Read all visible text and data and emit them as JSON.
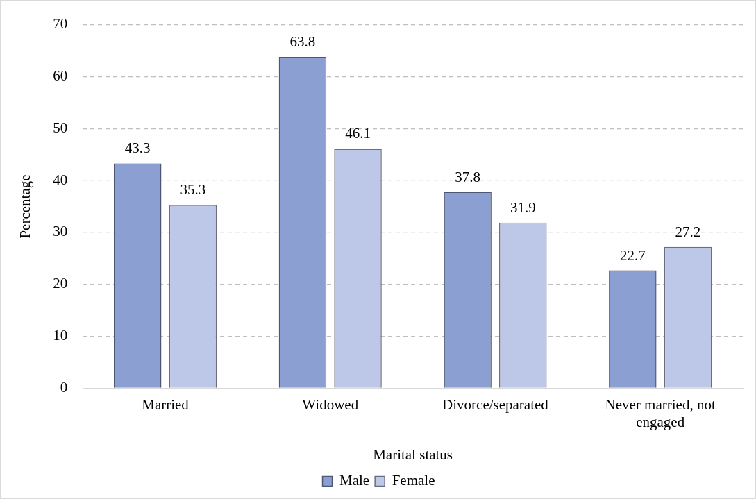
{
  "chart_data": {
    "type": "bar",
    "xlabel": "Marital status",
    "ylabel": "Percentage",
    "categories": [
      "Married",
      "Widowed",
      "Divorce/separated",
      "Never married, not engaged"
    ],
    "series": [
      {
        "name": "Male",
        "color": "#8c9fd2",
        "values": [
          43.3,
          63.8,
          37.8,
          22.7
        ]
      },
      {
        "name": "Female",
        "color": "#bdc7e7",
        "values": [
          35.3,
          46.1,
          31.9,
          27.2
        ]
      }
    ],
    "ylim": [
      0,
      70
    ],
    "yticks": [
      0,
      10,
      20,
      30,
      40,
      50,
      60,
      70
    ],
    "grid": "y",
    "line_style": "dashed",
    "legend": "bottom",
    "data_labels": true
  }
}
